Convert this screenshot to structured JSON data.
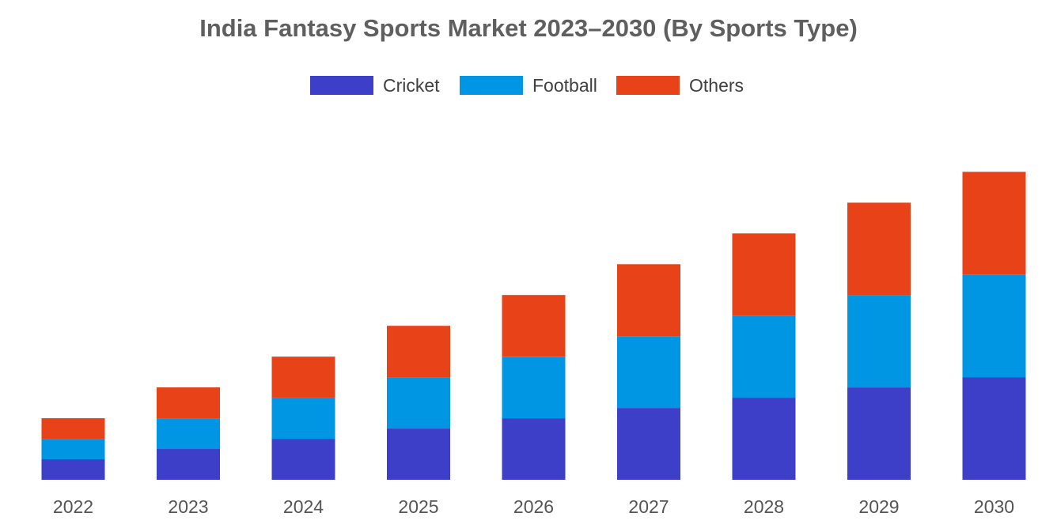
{
  "chart_data": {
    "type": "bar",
    "stacked": true,
    "title": "India Fantasy Sports Market 2023–2030 (By Sports Type)",
    "xlabel": "",
    "ylabel": "",
    "ylim": [
      0,
      32
    ],
    "grid": false,
    "legend_position": "top-center",
    "categories": [
      "2022",
      "2023",
      "2024",
      "2025",
      "2026",
      "2027",
      "2028",
      "2029",
      "2030"
    ],
    "series": [
      {
        "name": "Cricket",
        "color": "#3d3fc8",
        "values": [
          2,
          3,
          4,
          5,
          6,
          7,
          8,
          9,
          10
        ]
      },
      {
        "name": "Football",
        "color": "#0096e3",
        "values": [
          2,
          3,
          4,
          5,
          6,
          7,
          8,
          9,
          10
        ]
      },
      {
        "name": "Others",
        "color": "#e84219",
        "values": [
          2,
          3,
          4,
          5,
          6,
          7,
          8,
          9,
          10
        ]
      }
    ]
  }
}
